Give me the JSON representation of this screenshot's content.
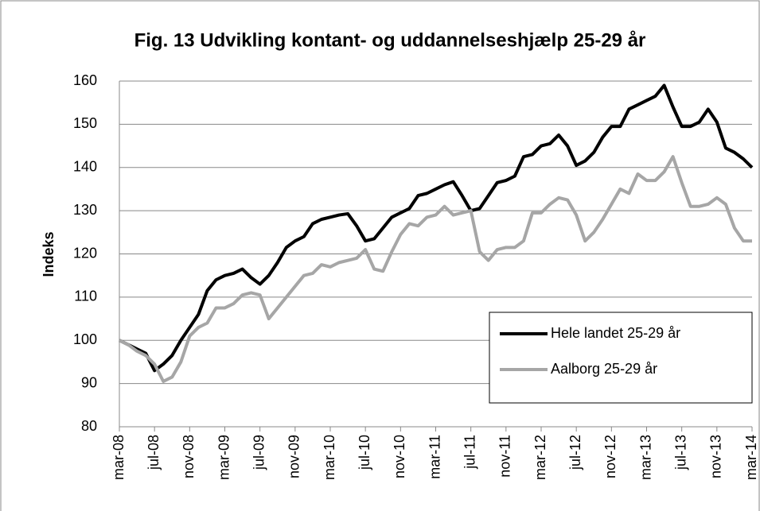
{
  "chart_data": {
    "type": "line",
    "title": "Fig. 13 Udvikling kontant- og uddannelseshjælp 25-29 år",
    "y_label": "Indeks",
    "categories": [
      "mar-08",
      null,
      null,
      null,
      "jul-08",
      null,
      null,
      null,
      "nov-08",
      null,
      null,
      null,
      "mar-09",
      null,
      null,
      null,
      "jul-09",
      null,
      null,
      null,
      "nov-09",
      null,
      null,
      null,
      "mar-10",
      null,
      null,
      null,
      "jul-10",
      null,
      null,
      null,
      "nov-10",
      null,
      null,
      null,
      "mar-11",
      null,
      null,
      null,
      "jul-11",
      null,
      null,
      null,
      "nov-11",
      null,
      null,
      null,
      "mar-12",
      null,
      null,
      null,
      "jul-12",
      null,
      null,
      null,
      "nov-12",
      null,
      null,
      null,
      "mar-13",
      null,
      null,
      null,
      "jul-13",
      null,
      null,
      null,
      "nov-13",
      null,
      null,
      null,
      "mar-14"
    ],
    "series": [
      {
        "name": "Hele landet 25-29 år",
        "color": "#000000",
        "values": [
          100,
          99,
          98,
          97,
          93,
          94.5,
          96.5,
          100,
          103,
          106,
          111.5,
          114,
          115,
          115.5,
          116.5,
          114.5,
          113,
          115,
          118,
          121.5,
          123,
          124,
          127,
          128,
          128.5,
          129,
          129.3,
          126.5,
          123,
          123.5,
          126,
          128.5,
          129.5,
          130.5,
          133.5,
          134,
          135,
          136,
          136.7,
          133.5,
          130,
          130.5,
          133.5,
          136.5,
          137,
          138,
          142.5,
          143,
          145,
          145.5,
          147.5,
          145,
          140.5,
          141.5,
          143.5,
          147,
          149.5,
          149.5,
          153.5,
          154.5,
          155.5,
          156.5,
          159,
          154,
          149.5,
          149.5,
          150.5,
          153.5,
          150.5,
          144.5,
          143.5,
          142,
          140
        ]
      },
      {
        "name": "Aalborg 25-29 år",
        "color": "#a6a6a6",
        "values": [
          100,
          99,
          97.5,
          96.5,
          94.5,
          90.5,
          91.5,
          95,
          101,
          103,
          104,
          107.5,
          107.5,
          108.5,
          110.5,
          111,
          110.5,
          105,
          107.5,
          110,
          112.5,
          115,
          115.5,
          117.5,
          117,
          118,
          118.5,
          119,
          121,
          116.5,
          116,
          120.5,
          124.5,
          127,
          126.5,
          128.5,
          129,
          131,
          129,
          129.5,
          130,
          120.5,
          118.5,
          121,
          121.5,
          121.5,
          123,
          129.5,
          129.5,
          131.5,
          133,
          132.5,
          129,
          123,
          125,
          128,
          131.5,
          135,
          134,
          138.5,
          137,
          137,
          139,
          142.5,
          136.5,
          131,
          131,
          131.5,
          133,
          131.5,
          126,
          123,
          123
        ]
      }
    ],
    "ylim": [
      80,
      160
    ],
    "yticks": [
      80,
      90,
      100,
      110,
      120,
      130,
      140,
      150,
      160
    ],
    "grid": true,
    "legend": "lower right"
  }
}
